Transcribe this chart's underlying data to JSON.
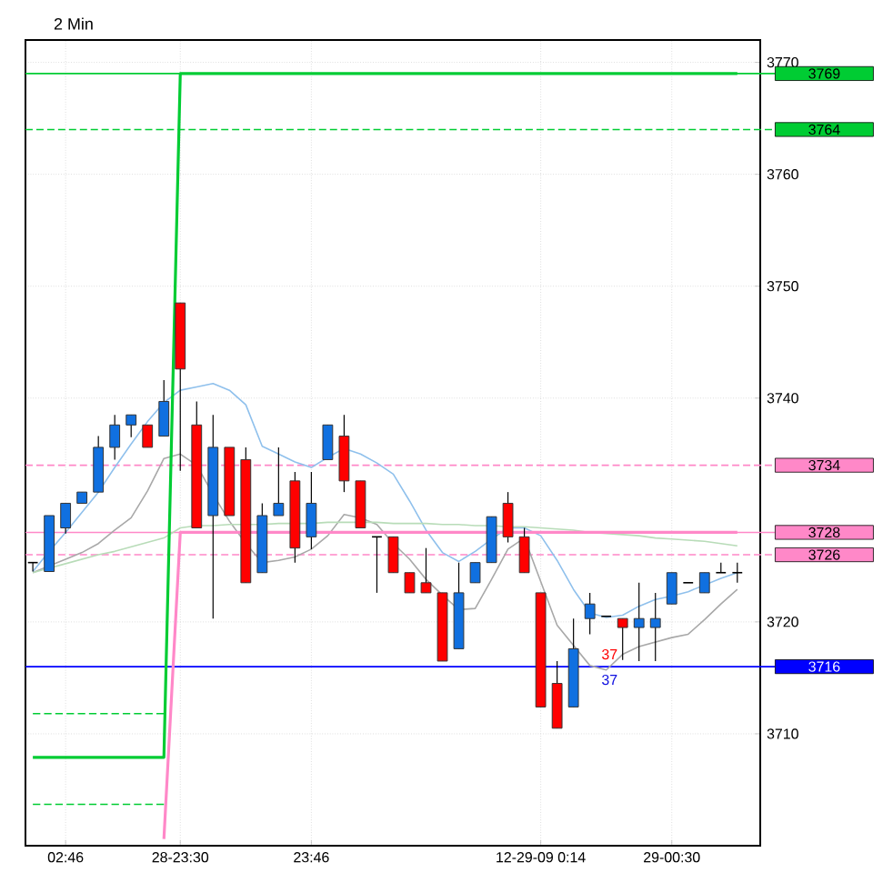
{
  "chart_data": {
    "type": "candlestick",
    "title": "2 Min",
    "categories": [
      null,
      null,
      "02:46",
      null,
      null,
      null,
      null,
      null,
      null,
      "28-23:30",
      null,
      null,
      null,
      null,
      null,
      null,
      null,
      "23:46",
      null,
      null,
      null,
      null,
      null,
      null,
      null,
      null,
      null,
      null,
      null,
      null,
      null,
      "12-29-09  0:14",
      null,
      null,
      null,
      null,
      null,
      null,
      null,
      "29-00:30",
      null,
      null,
      null,
      null
    ],
    "ohlc": [
      [
        3725.3,
        3725.3,
        3724.5,
        3725.3
      ],
      [
        3724.5,
        3729.5,
        3724.5,
        3729.5
      ],
      [
        3728.4,
        3730.6,
        3727.9,
        3730.6
      ],
      [
        3730.6,
        3731.6,
        3730.6,
        3731.6
      ],
      [
        3731.6,
        3736.6,
        3731.6,
        3735.6
      ],
      [
        3735.6,
        3738.5,
        3734.5,
        3737.6
      ],
      [
        3737.6,
        3738.5,
        3736.5,
        3738.5
      ],
      [
        3737.6,
        3737.6,
        3735.6,
        3735.6
      ],
      [
        3736.6,
        3741.6,
        3736.6,
        3739.7
      ],
      [
        3748.5,
        3748.5,
        3733.5,
        3742.6
      ],
      [
        3737.6,
        3739.7,
        3728.4,
        3728.4
      ],
      [
        3729.5,
        3738.5,
        3720.3,
        3735.6
      ],
      [
        3735.6,
        3735.6,
        3729.5,
        3729.5
      ],
      [
        3734.5,
        3735.6,
        3723.5,
        3723.5
      ],
      [
        3724.4,
        3730.6,
        3724.4,
        3729.5
      ],
      [
        3729.5,
        3735.6,
        3729.5,
        3730.6
      ],
      [
        3732.6,
        3733.4,
        3725.3,
        3726.6
      ],
      [
        3727.6,
        3733.4,
        3726.5,
        3730.6
      ],
      [
        3734.5,
        3737.6,
        3734.5,
        3737.6
      ],
      [
        3736.6,
        3738.5,
        3731.6,
        3732.6
      ],
      [
        3732.6,
        3732.6,
        3728.4,
        3728.4
      ],
      [
        3727.6,
        3727.6,
        3722.6,
        3727.6
      ],
      [
        3727.6,
        3727.6,
        3724.4,
        3724.4
      ],
      [
        3724.4,
        3724.4,
        3722.6,
        3722.6
      ],
      [
        3723.5,
        3726.6,
        3722.6,
        3722.6
      ],
      [
        3722.6,
        3722.6,
        3716.5,
        3716.5
      ],
      [
        3717.6,
        3725.3,
        3717.6,
        3722.6
      ],
      [
        3723.5,
        3725.3,
        3723.5,
        3725.3
      ],
      [
        3725.3,
        3729.4,
        3725.3,
        3729.4
      ],
      [
        3730.6,
        3731.6,
        3727.1,
        3727.6
      ],
      [
        3727.6,
        3728.4,
        3724.4,
        3724.4
      ],
      [
        3722.6,
        3722.6,
        3712.4,
        3712.4
      ],
      [
        3714.5,
        3716.5,
        3710.5,
        3710.5
      ],
      [
        3712.4,
        3720.3,
        3712.4,
        3717.6
      ],
      [
        3720.3,
        3722.6,
        3718.9,
        3721.6
      ],
      [
        3720.5,
        3720.5,
        3720.5,
        3720.5
      ],
      [
        3720.3,
        3720.3,
        3716.6,
        3719.5
      ],
      [
        3719.5,
        3723.5,
        3716.5,
        3720.3
      ],
      [
        3719.5,
        3722.6,
        3716.5,
        3720.3
      ],
      [
        3721.6,
        3724.4,
        3721.6,
        3724.4
      ],
      [
        3723.5,
        3723.5,
        3723.5,
        3723.5
      ],
      [
        3722.6,
        3724.4,
        3722.6,
        3724.4
      ],
      [
        3724.4,
        3725.3,
        3724.4,
        3724.4
      ],
      [
        3724.4,
        3725.3,
        3723.5,
        3724.4
      ]
    ],
    "series": [
      {
        "type": "line",
        "color": "#8fc0ec",
        "values": [
          3724.5,
          3726.3,
          3728,
          3729.8,
          3731.6,
          3733.8,
          3735.9,
          3737.9,
          3739.6,
          3740.7,
          3741,
          3741.3,
          3740.7,
          3739.4,
          3735.7,
          3735,
          3734.3,
          3733.8,
          3734.7,
          3735.5,
          3735,
          3734.2,
          3733.2,
          3730.8,
          3728.2,
          3726.2,
          3725.4,
          3726.3,
          3727.4,
          3728.4,
          3728.4,
          3727.7,
          3725.5,
          3722.9,
          3720.8,
          3720.4,
          3720.6,
          3721.4,
          3722,
          3722.3,
          3722.7,
          3723.3,
          3723.9,
          3724.4
        ]
      },
      {
        "type": "line",
        "color": "#a8a8a8",
        "values": [
          3724.4,
          3725,
          3725.6,
          3726.2,
          3727,
          3728.2,
          3729.3,
          3731.7,
          3734.6,
          3735,
          3734,
          3731.4,
          3729,
          3727,
          3725.3,
          3725.5,
          3725.8,
          3726.5,
          3727.7,
          3729.6,
          3729.3,
          3728.7,
          3727,
          3725.6,
          3723.8,
          3722.4,
          3721.1,
          3721.2,
          3723.8,
          3726.5,
          3727.5,
          3723.6,
          3719.7,
          3717.9,
          3716.1,
          3715.7,
          3717.1,
          3717.8,
          3718.2,
          3718.6,
          3718.9,
          3720.2,
          3721.6,
          3722.9
        ]
      },
      {
        "type": "line",
        "color": "#b8dcb8",
        "values": [
          3724.4,
          3724.8,
          3725.2,
          3725.6,
          3726,
          3726.3,
          3726.7,
          3727.1,
          3727.5,
          3728.4,
          3728.6,
          3728.6,
          3728.7,
          3728.7,
          3728.7,
          3728.8,
          3728.8,
          3728.8,
          3728.9,
          3728.9,
          3728.9,
          3728.9,
          3728.8,
          3728.8,
          3728.8,
          3728.7,
          3728.7,
          3728.6,
          3728.6,
          3728.5,
          3728.5,
          3728.4,
          3728.3,
          3728.2,
          3728.0,
          3727.9,
          3727.8,
          3727.7,
          3727.5,
          3727.4,
          3727.3,
          3727.2,
          3727.0,
          3726.8
        ]
      },
      {
        "type": "line",
        "color": "#00cc33",
        "values": [
          3707.9,
          3707.9,
          3707.9,
          3707.9,
          3707.9,
          3707.9,
          3707.9,
          3707.9,
          3707.9,
          3769,
          3769,
          3769,
          3769,
          3769,
          3769,
          3769,
          3769,
          3769,
          3769,
          3769,
          3769,
          3769,
          3769,
          3769,
          3769,
          3769,
          3769,
          3769,
          3769,
          3769,
          3769,
          3769,
          3769,
          3769,
          3769,
          3769,
          3769,
          3769,
          3769,
          3769,
          3769,
          3769,
          3769,
          3769
        ]
      },
      {
        "type": "line",
        "color": "#ff88c8",
        "values": [
          null,
          null,
          null,
          null,
          null,
          null,
          null,
          null,
          3700.6,
          3728,
          3728,
          3728,
          3728,
          3728,
          3728,
          3728,
          3728,
          3728,
          3728,
          3728,
          3728,
          3728,
          3728,
          3728,
          3728,
          3728,
          3728,
          3728,
          3728,
          3728,
          3728,
          3728,
          3728,
          3728,
          3728,
          3728,
          3728,
          3728,
          3728,
          3728,
          3728,
          3728,
          3728,
          3728
        ]
      },
      {
        "type": "line",
        "color": "#00cc33",
        "line_style": "dashed",
        "values": [
          3711.8,
          3711.8,
          3711.8,
          3711.8,
          3711.8,
          3711.8,
          3711.8,
          3711.8,
          3711.8,
          null,
          null,
          null,
          null,
          null,
          null,
          null,
          null,
          null,
          null,
          null,
          null,
          null,
          null,
          null,
          null,
          null,
          null,
          null,
          null,
          null,
          null,
          null,
          null,
          null,
          null,
          null,
          null,
          null,
          null,
          null,
          null,
          null,
          null,
          null
        ]
      },
      {
        "type": "line",
        "color": "#00cc33",
        "line_style": "dashed",
        "values": [
          3703.7,
          3703.7,
          3703.7,
          3703.7,
          3703.7,
          3703.7,
          3703.7,
          3703.7,
          3703.7,
          null,
          null,
          null,
          null,
          null,
          null,
          null,
          null,
          null,
          null,
          null,
          null,
          null,
          null,
          null,
          null,
          null,
          null,
          null,
          null,
          null,
          null,
          null,
          null,
          null,
          null,
          null,
          null,
          null,
          null,
          null,
          null,
          null,
          null,
          null
        ]
      }
    ],
    "ref_lines": [
      {
        "axis": "y",
        "value": 3769,
        "label": "3769",
        "color": "#00cc33"
      },
      {
        "axis": "y",
        "value": 3728,
        "label": "3728",
        "color": "#ff88c8"
      },
      {
        "axis": "y",
        "value": 3716,
        "label": "3716",
        "color": "#0000ff"
      },
      {
        "axis": "y",
        "value": 3764,
        "label": "3764",
        "color": "#00cc33",
        "line_style": "dashed"
      },
      {
        "axis": "y",
        "value": 3734,
        "label": "3734",
        "color": "#ff88c8",
        "line_style": "dashed"
      },
      {
        "axis": "y",
        "value": 3726,
        "label": "3726",
        "color": "#ff88c8",
        "line_style": "dashed"
      }
    ],
    "annotations": [
      {
        "text": "37",
        "y": 3717.1
      },
      "37"
    ],
    "ylim": [
      3700,
      3772
    ],
    "yticks": [
      3710,
      3720,
      3740,
      3750,
      3760,
      3770
    ],
    "grid": true,
    "marker": "none",
    "line_style": "solid"
  }
}
